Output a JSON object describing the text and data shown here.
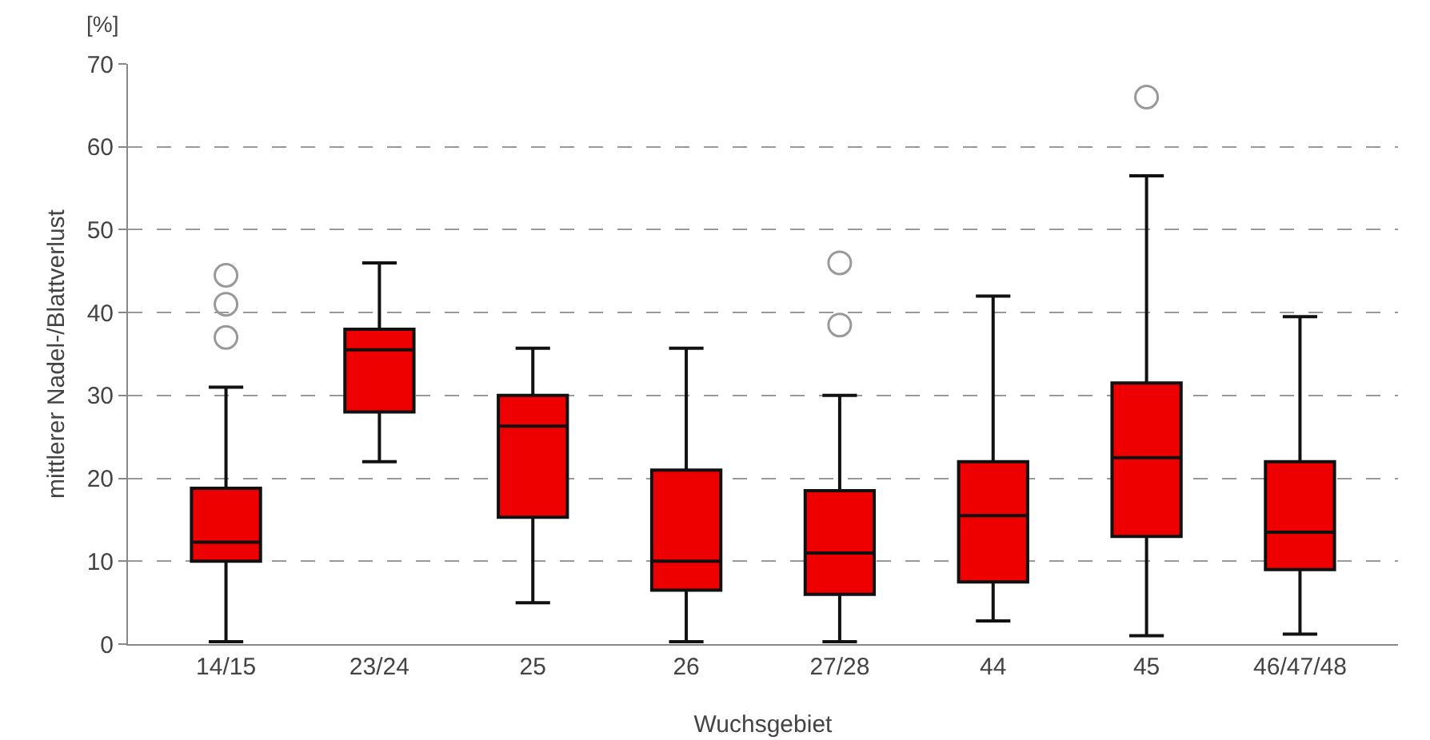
{
  "chart_data": {
    "type": "box",
    "xlabel": "Wuchsgebiet",
    "ylabel": "mittlerer Nadel-/Blattverlust",
    "annotations": [
      "[%]"
    ],
    "categories": [
      "14/15",
      "23/24",
      "25",
      "26",
      "27/28",
      "44",
      "45",
      "46/47/48"
    ],
    "color": "#ee0000",
    "boxes": [
      {
        "low": 0.3,
        "q1": 10,
        "median": 12.3,
        "q3": 18.8,
        "high": 31,
        "outliers": [
          37,
          41,
          44.5
        ]
      },
      {
        "low": 22,
        "q1": 28,
        "median": 35.5,
        "q3": 38,
        "high": 46
      },
      {
        "low": 5,
        "q1": 15.3,
        "median": 26.3,
        "q3": 30,
        "high": 35.7
      },
      {
        "low": 0.3,
        "q1": 6.5,
        "median": 10,
        "q3": 21,
        "high": 35.7
      },
      {
        "low": 0.3,
        "q1": 6,
        "median": 11,
        "q3": 18.5,
        "high": 30,
        "outliers": [
          38.5,
          46
        ]
      },
      {
        "low": 2.8,
        "q1": 7.5,
        "median": 15.5,
        "q3": 22,
        "high": 42
      },
      {
        "low": 1,
        "q1": 13,
        "median": 22.5,
        "q3": 31.5,
        "high": 56.5,
        "outliers": [
          66
        ]
      },
      {
        "low": 1.2,
        "q1": 9,
        "median": 13.5,
        "q3": 22,
        "high": 39.5
      }
    ],
    "ylim": [
      0,
      70
    ],
    "yticks": [
      0,
      10,
      20,
      30,
      40,
      50,
      60,
      70
    ],
    "grid": "y"
  }
}
